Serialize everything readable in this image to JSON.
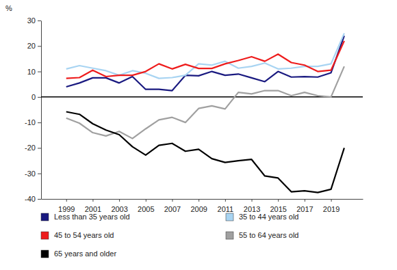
{
  "chart_data": {
    "type": "line",
    "y_label": "%",
    "x": [
      1999,
      2000,
      2001,
      2002,
      2003,
      2004,
      2005,
      2006,
      2007,
      2008,
      2009,
      2010,
      2011,
      2012,
      2013,
      2014,
      2015,
      2016,
      2017,
      2018,
      2019,
      2020
    ],
    "xlim": [
      1997.1,
      2021.4
    ],
    "xticks": [
      1999,
      2001,
      2003,
      2005,
      2007,
      2009,
      2011,
      2013,
      2015,
      2017,
      2019
    ],
    "ylim": [
      -40,
      30
    ],
    "yticks": [
      -40,
      -30,
      -20,
      -10,
      0,
      10,
      20,
      30
    ],
    "grid": false,
    "legend": "bottom",
    "series": [
      {
        "name": "Less than 35 years old",
        "color": "#1a1a80",
        "values": [
          4,
          5.5,
          7.5,
          7.5,
          5.5,
          8,
          3,
          3,
          2.5,
          8.5,
          8.3,
          10,
          8.5,
          9,
          7.5,
          6,
          10,
          7.8,
          8,
          7.8,
          9.5,
          24
        ]
      },
      {
        "name": "35 to 44 years old",
        "color": "#a8d4f2",
        "values": [
          11,
          12.3,
          11.3,
          10.3,
          8.5,
          10.3,
          9.3,
          7.3,
          7.6,
          8.5,
          13,
          12.5,
          14,
          11.3,
          12,
          13.3,
          11,
          11.3,
          12,
          12,
          13,
          25
        ]
      },
      {
        "name": "45 to 54 years old",
        "color": "#ee1c1c",
        "values": [
          7.3,
          7.6,
          10.5,
          8,
          8.5,
          8.5,
          10,
          13,
          11,
          12.8,
          11.2,
          11.2,
          13,
          14.3,
          15.8,
          14,
          16.8,
          13.5,
          12.5,
          10,
          10.5,
          22
        ]
      },
      {
        "name": "55 to 64 years old",
        "color": "#a0a0a0",
        "values": [
          -8.3,
          -10.3,
          -14,
          -15.3,
          -13.5,
          -16.3,
          -12.5,
          -9,
          -8,
          -10,
          -4.5,
          -3.5,
          -4.7,
          1.8,
          1.2,
          2.5,
          2.5,
          0.5,
          1.8,
          0.5,
          0,
          12
        ]
      },
      {
        "name": "65 years and older",
        "color": "#000000",
        "values": [
          -5.8,
          -6.8,
          -10.5,
          -13,
          -14.8,
          -19.5,
          -22.8,
          -19,
          -18.2,
          -21.3,
          -20.5,
          -24.2,
          -25.7,
          -25,
          -24.5,
          -31,
          -31.8,
          -37.2,
          -36.8,
          -37.5,
          -36.2,
          -20
        ]
      }
    ]
  }
}
